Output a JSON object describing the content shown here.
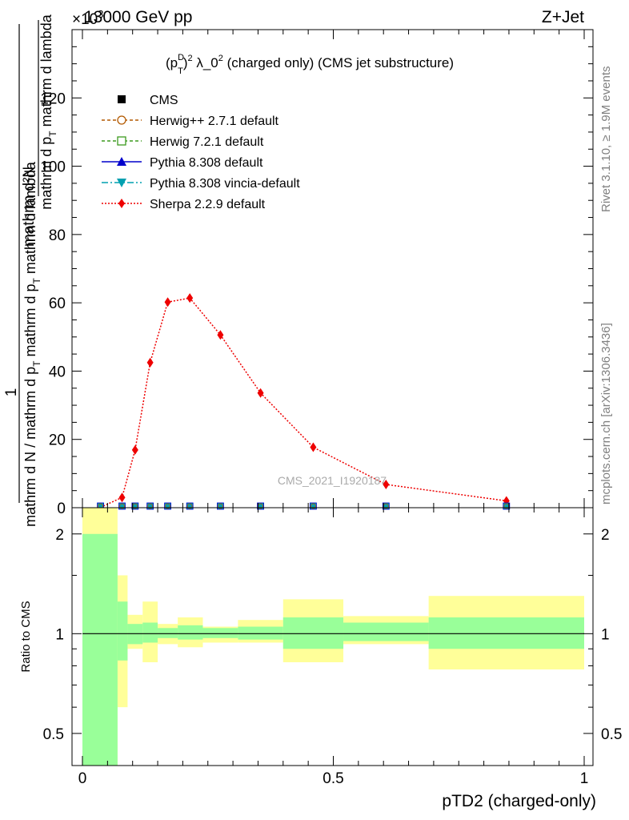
{
  "header": {
    "left": "13000 GeV pp",
    "right": "Z+Jet",
    "exponent_prefix": "×10",
    "exponent": "3"
  },
  "side_labels": {
    "rivet": "Rivet 3.1.10, ≥ 1.9M events",
    "mcplots": "mcplots.cern.ch [arXiv:1306.3436]"
  },
  "chart_data": [
    {
      "type": "line",
      "panel": "main",
      "title_parts": {
        "p": "(p",
        "sup": "D",
        "sub": "T",
        "rest": ")",
        "sq": "2",
        "lam": " λ_0",
        "tail": " (charged only) (CMS jet substructure)"
      },
      "watermark": "CMS_2021_I1920187",
      "ylabel": {
        "top_num": "mathrm d²N",
        "top_den": "mathrm d p",
        "top_den_sub": "T",
        "top_den_rest": " mathrm d lambda",
        "one": "1",
        "bottom": "mathrm d N / mathrm d p",
        "bottom_sub": "T",
        "bottom_rest": " mathrm d p",
        "bottom_sub2": "T",
        "bottom_rest2": " mathrm d lambda"
      },
      "xlim": [
        0,
        1
      ],
      "ylim": [
        0,
        140
      ],
      "yticks": [
        0,
        20,
        40,
        60,
        80,
        100,
        120
      ],
      "ytick_labels": [
        "0",
        "20",
        "40",
        "60",
        "80",
        "100",
        "120"
      ],
      "legend": [
        {
          "name": "CMS",
          "color": "#000000",
          "marker": "square",
          "dash": ""
        },
        {
          "name": "Herwig++ 2.7.1 default",
          "color": "#b35900",
          "marker": "circle-open",
          "dash": "4,3"
        },
        {
          "name": "Herwig 7.2.1 default",
          "color": "#3c9a1e",
          "marker": "square-open",
          "dash": "4,3"
        },
        {
          "name": "Pythia 8.308 default",
          "color": "#0000cc",
          "marker": "triangle-up",
          "dash": ""
        },
        {
          "name": "Pythia 8.308 vincia-default",
          "color": "#00a0b0",
          "marker": "triangle-down",
          "dash": "8,3,2,3"
        },
        {
          "name": "Sherpa 2.2.9 default",
          "color": "#ee0000",
          "marker": "diamond",
          "dash": "2,2"
        }
      ],
      "series": [
        {
          "name": "Sherpa 2.2.9 default",
          "x": [
            0.036,
            0.079,
            0.105,
            0.135,
            0.17,
            0.214,
            0.275,
            0.355,
            0.46,
            0.605,
            0.845
          ],
          "y": [
            0.1,
            3.0,
            16.9,
            42.5,
            60.2,
            61.4,
            50.6,
            33.6,
            17.7,
            6.8,
            2.0
          ]
        },
        {
          "name": "CMS and other generators (at zero)",
          "x": [
            0.036,
            0.079,
            0.105,
            0.135,
            0.17,
            0.214,
            0.275,
            0.355,
            0.46,
            0.605,
            0.845
          ],
          "y": [
            0,
            0,
            0,
            0,
            0,
            0,
            0,
            0,
            0,
            0,
            0
          ]
        }
      ]
    },
    {
      "type": "area",
      "panel": "ratio",
      "ylabel": "Ratio to CMS",
      "xlabel": "pTD2 (charged-only)",
      "xlim": [
        0,
        1
      ],
      "xticks": [
        0,
        0.5,
        1
      ],
      "xtick_labels": [
        "0",
        "0.5",
        "1"
      ],
      "yscale": "log",
      "ylim": [
        0.4,
        2.4
      ],
      "yticks": [
        0.5,
        1,
        2
      ],
      "ytick_labels": [
        "0.5",
        "1",
        "2"
      ],
      "bin_edges": [
        0.0,
        0.07,
        0.09,
        0.12,
        0.15,
        0.19,
        0.24,
        0.31,
        0.4,
        0.52,
        0.69,
        1.0
      ],
      "stat_band": {
        "color": "#99ff99",
        "lo": [
          0.3,
          0.83,
          0.93,
          0.94,
          0.97,
          0.96,
          0.97,
          0.96,
          0.9,
          0.95,
          0.9
        ],
        "hi": [
          2.0,
          1.25,
          1.07,
          1.08,
          1.04,
          1.06,
          1.04,
          1.05,
          1.12,
          1.08,
          1.12
        ]
      },
      "syst_band": {
        "color": "#ffff99",
        "lo": [
          0.3,
          0.6,
          0.9,
          0.82,
          0.93,
          0.91,
          0.94,
          0.94,
          0.82,
          0.93,
          0.78
        ],
        "hi": [
          2.5,
          1.5,
          1.14,
          1.25,
          1.07,
          1.12,
          1.05,
          1.1,
          1.27,
          1.13,
          1.3
        ]
      },
      "reference": 1
    }
  ]
}
